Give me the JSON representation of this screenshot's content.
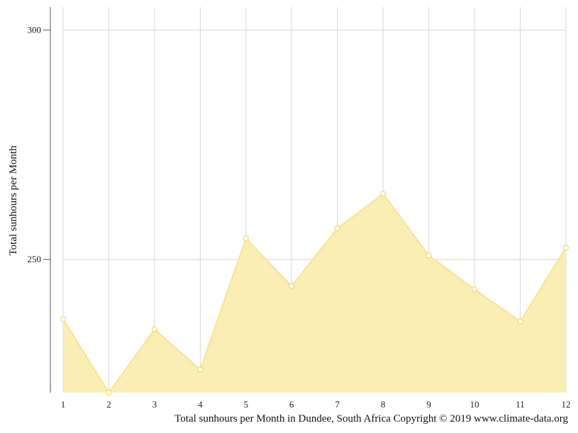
{
  "chart_data": {
    "type": "area",
    "x": [
      "1",
      "2",
      "3",
      "4",
      "5",
      "6",
      "7",
      "8",
      "9",
      "10",
      "11",
      "12"
    ],
    "series": [
      {
        "values": [
          237,
          221,
          234.8,
          226,
          254.6,
          244.2,
          256.8,
          264.3,
          250.9,
          243.5,
          236.5,
          252.6
        ]
      }
    ],
    "ylabel": "Total sunhours per Month",
    "yticks": [
      250,
      300
    ],
    "ylim": [
      221,
      305
    ],
    "grid": true,
    "colors": {
      "fill": "#faedb0",
      "line": "#f8e38e",
      "marker_edge": "#f3d86a",
      "grid": "#d6d6d6",
      "axis": "#555555"
    }
  },
  "caption": "Total sunhours per Month in Dundee, South Africa Copyright © 2019 www.climate-data.org"
}
